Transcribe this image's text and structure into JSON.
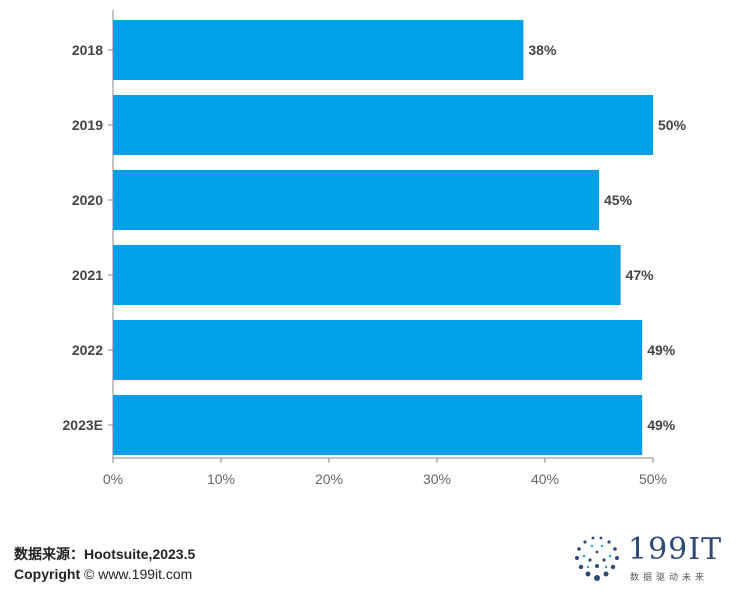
{
  "chart_data": {
    "type": "bar",
    "orientation": "horizontal",
    "categories": [
      "2018",
      "2019",
      "2020",
      "2021",
      "2022",
      "2023E"
    ],
    "values": [
      38,
      50,
      45,
      47,
      49,
      49
    ],
    "value_labels": [
      "38%",
      "50%",
      "45%",
      "47%",
      "49%",
      "49%"
    ],
    "xlim": [
      0,
      50
    ],
    "x_ticks": [
      0,
      10,
      20,
      30,
      40,
      50
    ],
    "x_tick_labels": [
      "0%",
      "10%",
      "20%",
      "30%",
      "40%",
      "50%"
    ],
    "grid": false,
    "bar_color": "#039fe6"
  },
  "footer": {
    "source": "数据来源：Hootsuite,2023.5",
    "copyright_word": "Copyright",
    "copyright_rest": " © www.199it.com"
  },
  "logo": {
    "name": "199IT",
    "tagline": "数据驱动未来"
  }
}
